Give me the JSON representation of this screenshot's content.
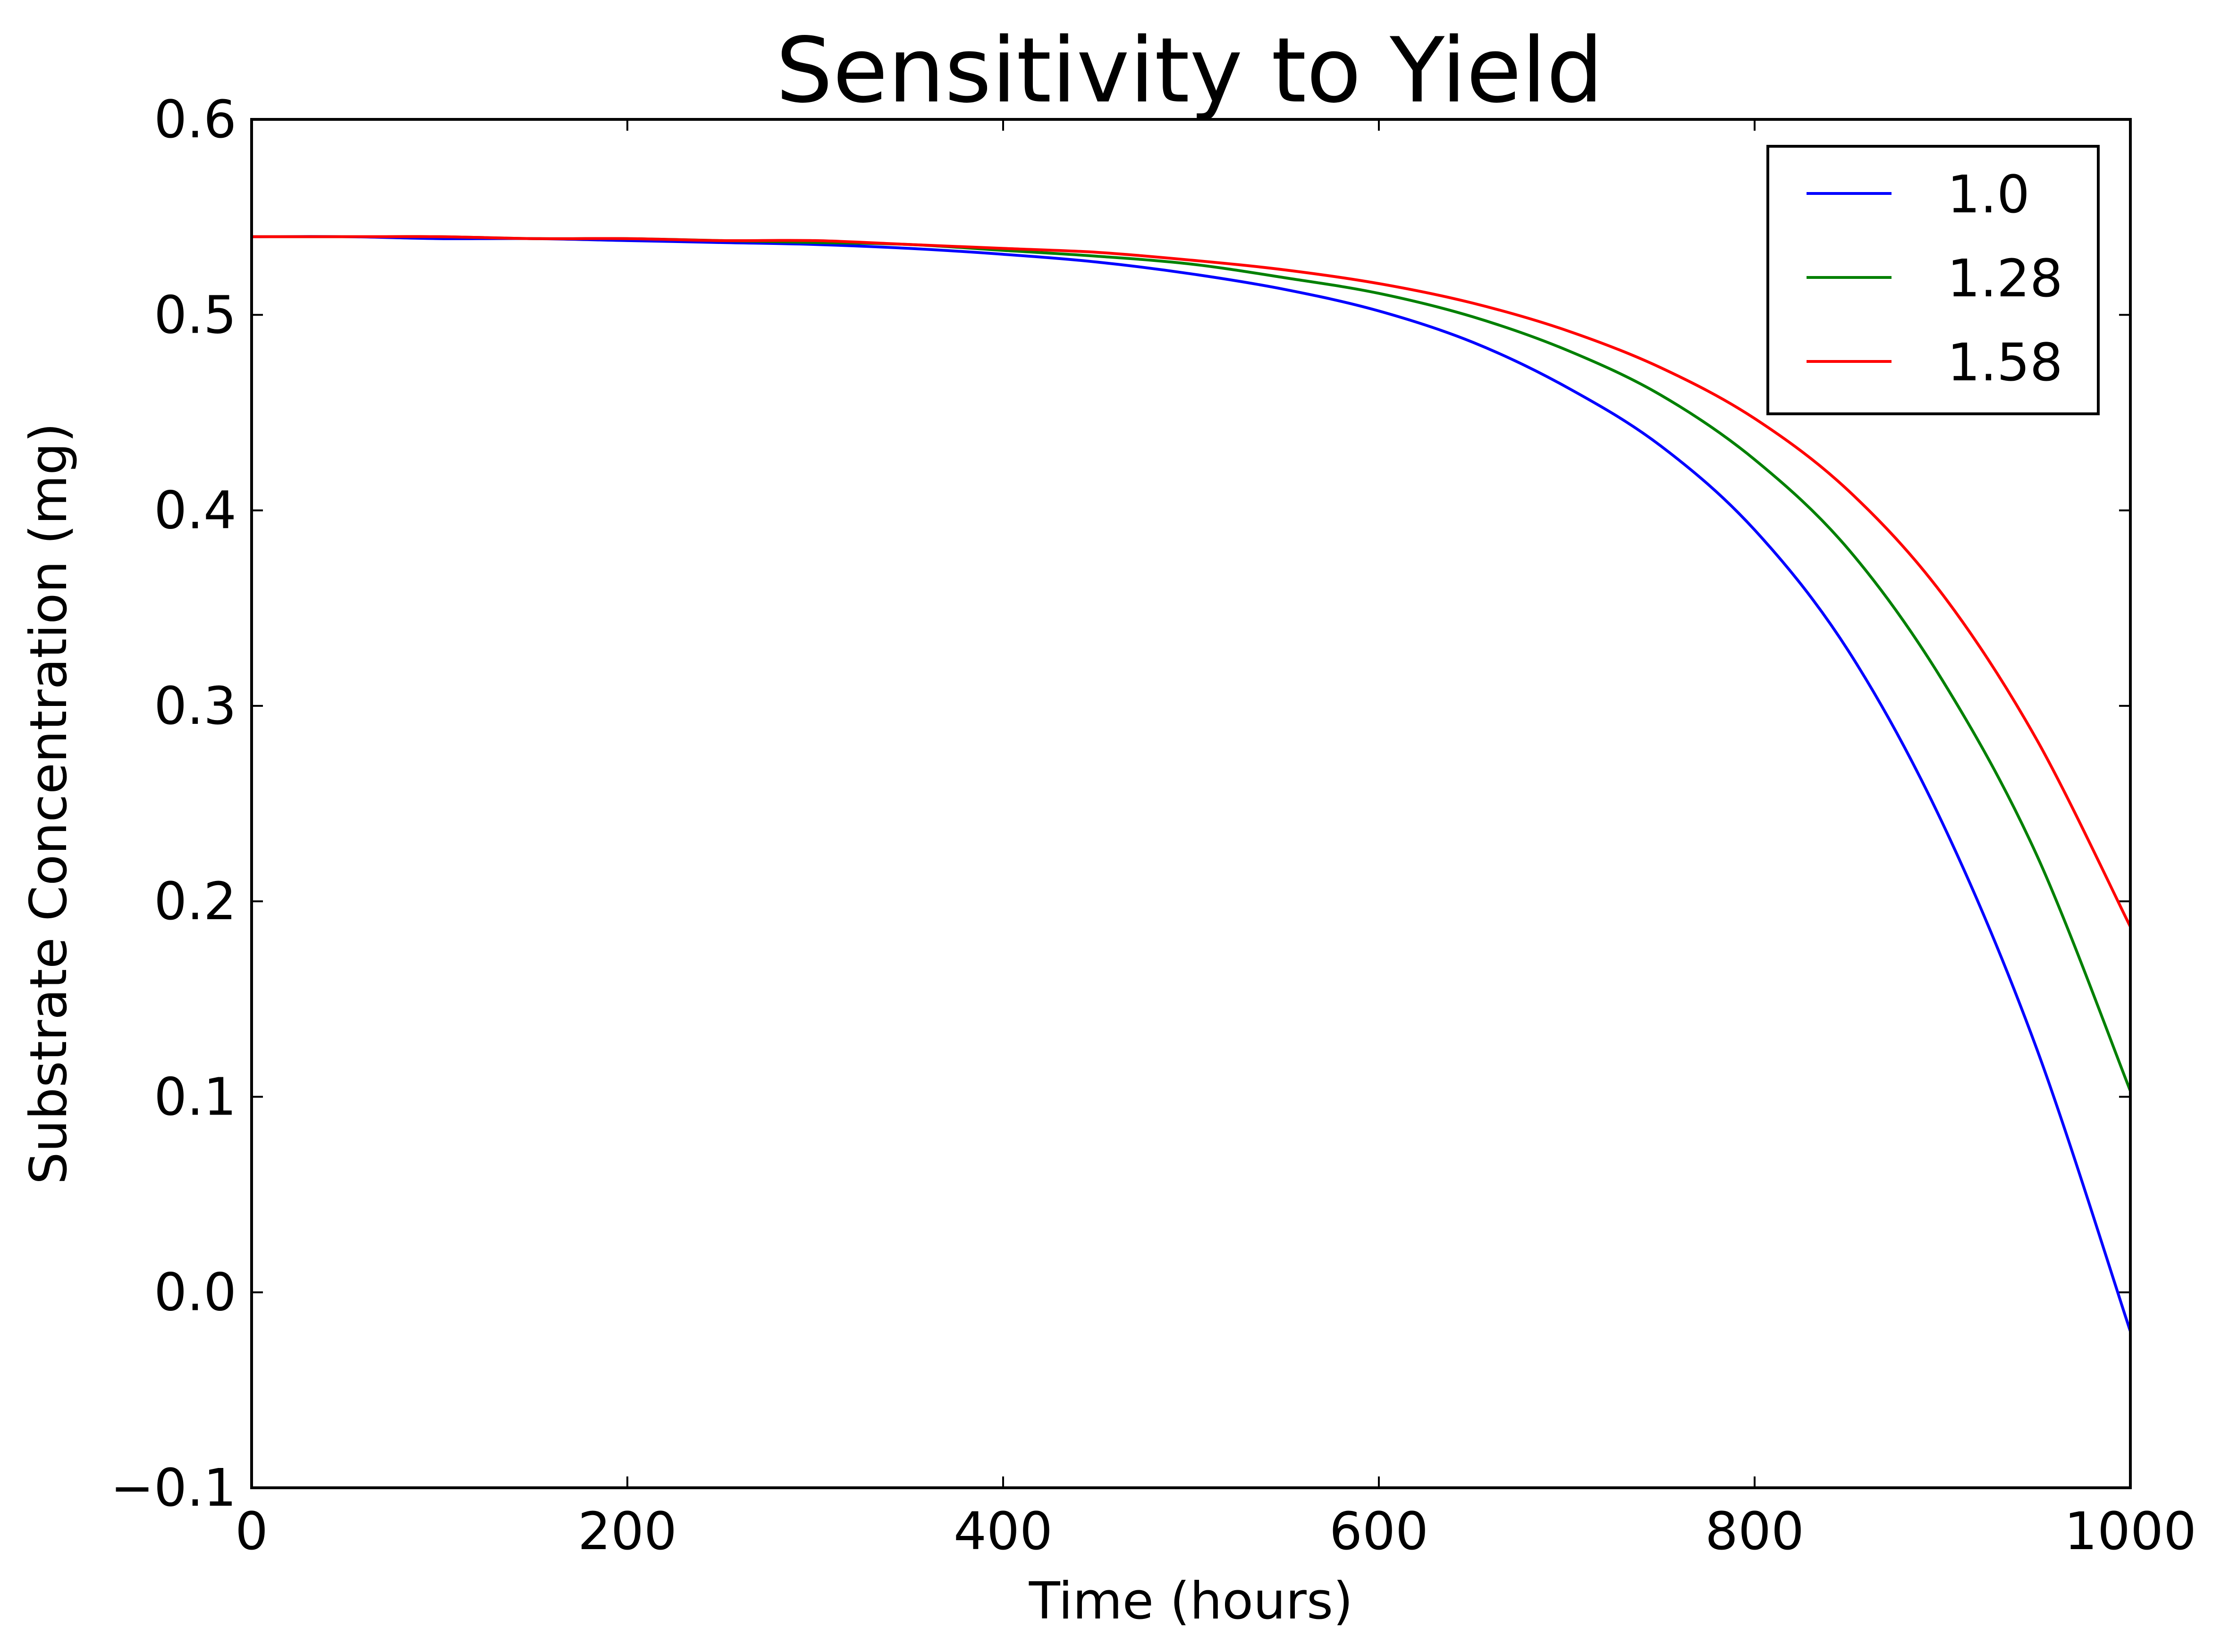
{
  "chart_data": {
    "type": "line",
    "title": "Sensitivity to Yield",
    "xlabel": "Time (hours)",
    "ylabel": "Substrate Concentration (mg)",
    "xlim": [
      0,
      1000
    ],
    "ylim": [
      -0.1,
      0.6
    ],
    "xticks": [
      0,
      200,
      400,
      600,
      800,
      1000
    ],
    "yticks": [
      -0.1,
      0.0,
      0.1,
      0.2,
      0.3,
      0.4,
      0.5,
      0.6
    ],
    "xtick_labels": [
      "0",
      "200",
      "400",
      "600",
      "800",
      "1000"
    ],
    "ytick_labels": [
      "−0.1",
      "0.0",
      "0.1",
      "0.2",
      "0.3",
      "0.4",
      "0.5",
      "0.6"
    ],
    "grid": false,
    "legend_position": "top-right",
    "x": [
      0,
      50,
      100,
      150,
      200,
      250,
      300,
      350,
      400,
      450,
      500,
      550,
      600,
      650,
      700,
      750,
      800,
      850,
      900,
      950,
      1000
    ],
    "series": [
      {
        "name": "1.0",
        "color": "#0000ff",
        "values": [
          0.54,
          0.54,
          0.539,
          0.539,
          0.538,
          0.537,
          0.536,
          0.534,
          0.531,
          0.527,
          0.521,
          0.513,
          0.502,
          0.486,
          0.463,
          0.433,
          0.39,
          0.328,
          0.24,
          0.125,
          -0.02
        ]
      },
      {
        "name": "1.28",
        "color": "#008000",
        "values": [
          0.54,
          0.54,
          0.54,
          0.539,
          0.539,
          0.538,
          0.537,
          0.536,
          0.533,
          0.53,
          0.526,
          0.519,
          0.511,
          0.499,
          0.482,
          0.459,
          0.426,
          0.38,
          0.313,
          0.224,
          0.103
        ]
      },
      {
        "name": "1.58",
        "color": "#ff0000",
        "values": [
          0.54,
          0.54,
          0.54,
          0.539,
          0.539,
          0.538,
          0.538,
          0.536,
          0.534,
          0.532,
          0.528,
          0.523,
          0.516,
          0.506,
          0.492,
          0.473,
          0.447,
          0.41,
          0.357,
          0.283,
          0.187
        ]
      }
    ]
  }
}
